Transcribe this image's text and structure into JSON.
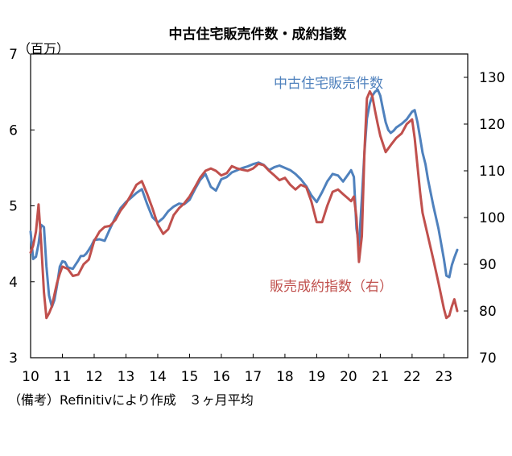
{
  "chart_data": {
    "type": "line",
    "title": "中古住宅販売件数・成約指数",
    "unit_left": "（百万）",
    "note": "（備考）Refinitivにより作成　３ヶ月平均",
    "x_ticks": [
      "10",
      "11",
      "12",
      "13",
      "14",
      "15",
      "16",
      "17",
      "18",
      "19",
      "20",
      "21",
      "22",
      "23"
    ],
    "x_range": [
      2010,
      2023.75
    ],
    "y_left": {
      "range": [
        3,
        7
      ],
      "ticks": [
        "3",
        "4",
        "5",
        "6",
        "7"
      ]
    },
    "y_right": {
      "range": [
        70,
        135
      ],
      "ticks": [
        "70",
        "80",
        "90",
        "100",
        "110",
        "120",
        "130"
      ]
    },
    "grid": false,
    "series": [
      {
        "name": "中古住宅販売件数",
        "axis": "left",
        "color": "#4f81bd",
        "x": [
          2010.0,
          2010.08,
          2010.17,
          2010.25,
          2010.33,
          2010.42,
          2010.5,
          2010.58,
          2010.67,
          2010.75,
          2010.83,
          2010.92,
          2011.0,
          2011.08,
          2011.17,
          2011.25,
          2011.33,
          2011.42,
          2011.5,
          2011.58,
          2011.67,
          2011.75,
          2011.83,
          2011.92,
          2012.0,
          2012.17,
          2012.33,
          2012.5,
          2012.67,
          2012.83,
          2013.0,
          2013.17,
          2013.33,
          2013.5,
          2013.67,
          2013.83,
          2014.0,
          2014.17,
          2014.33,
          2014.5,
          2014.67,
          2014.83,
          2015.0,
          2015.17,
          2015.33,
          2015.5,
          2015.67,
          2015.83,
          2016.0,
          2016.17,
          2016.33,
          2016.5,
          2016.67,
          2016.83,
          2017.0,
          2017.17,
          2017.33,
          2017.5,
          2017.67,
          2017.83,
          2018.0,
          2018.17,
          2018.33,
          2018.5,
          2018.67,
          2018.83,
          2019.0,
          2019.17,
          2019.33,
          2019.5,
          2019.67,
          2019.83,
          2020.0,
          2020.08,
          2020.17,
          2020.25,
          2020.33,
          2020.42,
          2020.5,
          2020.58,
          2020.67,
          2020.75,
          2020.83,
          2020.92,
          2021.0,
          2021.08,
          2021.17,
          2021.25,
          2021.33,
          2021.42,
          2021.5,
          2021.67,
          2021.83,
          2022.0,
          2022.08,
          2022.17,
          2022.25,
          2022.33,
          2022.42,
          2022.5,
          2022.67,
          2022.83,
          2023.0,
          2023.08,
          2023.17,
          2023.25,
          2023.33,
          2023.42
        ],
        "values": [
          4.66,
          4.3,
          4.33,
          4.5,
          4.75,
          4.72,
          4.2,
          3.82,
          3.67,
          3.76,
          3.95,
          4.2,
          4.27,
          4.26,
          4.19,
          4.18,
          4.17,
          4.23,
          4.28,
          4.34,
          4.34,
          4.37,
          4.42,
          4.48,
          4.55,
          4.56,
          4.54,
          4.7,
          4.85,
          4.97,
          5.05,
          5.11,
          5.17,
          5.22,
          5.02,
          4.85,
          4.78,
          4.84,
          4.93,
          4.99,
          5.03,
          5.02,
          5.08,
          5.22,
          5.34,
          5.42,
          5.25,
          5.2,
          5.35,
          5.38,
          5.44,
          5.47,
          5.5,
          5.52,
          5.55,
          5.57,
          5.54,
          5.47,
          5.51,
          5.53,
          5.5,
          5.47,
          5.42,
          5.35,
          5.26,
          5.14,
          5.05,
          5.18,
          5.32,
          5.42,
          5.4,
          5.32,
          5.42,
          5.47,
          5.38,
          4.7,
          4.48,
          5.1,
          5.7,
          6.15,
          6.35,
          6.45,
          6.5,
          6.53,
          6.45,
          6.28,
          6.1,
          6.0,
          5.96,
          5.99,
          6.03,
          6.08,
          6.14,
          6.24,
          6.26,
          6.1,
          5.9,
          5.7,
          5.55,
          5.35,
          5.0,
          4.7,
          4.3,
          4.08,
          4.06,
          4.22,
          4.32,
          4.42
        ]
      },
      {
        "name": "販売成約指数（右）",
        "axis": "right",
        "color": "#c0504d",
        "x": [
          2010.0,
          2010.08,
          2010.17,
          2010.25,
          2010.33,
          2010.42,
          2010.5,
          2010.58,
          2010.67,
          2010.75,
          2010.83,
          2010.92,
          2011.0,
          2011.17,
          2011.33,
          2011.5,
          2011.67,
          2011.83,
          2012.0,
          2012.17,
          2012.33,
          2012.5,
          2012.67,
          2012.83,
          2013.0,
          2013.17,
          2013.33,
          2013.5,
          2013.67,
          2013.83,
          2014.0,
          2014.17,
          2014.33,
          2014.5,
          2014.67,
          2014.83,
          2015.0,
          2015.17,
          2015.33,
          2015.5,
          2015.67,
          2015.83,
          2016.0,
          2016.17,
          2016.33,
          2016.5,
          2016.67,
          2016.83,
          2017.0,
          2017.17,
          2017.33,
          2017.5,
          2017.67,
          2017.83,
          2018.0,
          2018.17,
          2018.33,
          2018.5,
          2018.67,
          2018.83,
          2019.0,
          2019.17,
          2019.33,
          2019.5,
          2019.67,
          2019.83,
          2020.0,
          2020.08,
          2020.17,
          2020.25,
          2020.33,
          2020.42,
          2020.5,
          2020.58,
          2020.67,
          2020.75,
          2020.83,
          2020.92,
          2021.0,
          2021.17,
          2021.33,
          2021.5,
          2021.67,
          2021.83,
          2022.0,
          2022.08,
          2022.17,
          2022.25,
          2022.33,
          2022.5,
          2022.67,
          2022.83,
          2023.0,
          2023.08,
          2023.17,
          2023.25,
          2023.33,
          2023.42
        ],
        "values": [
          92.5,
          94.0,
          97.0,
          102.8,
          95.0,
          84.0,
          78.5,
          79.5,
          81.0,
          83.5,
          86.0,
          88.0,
          89.5,
          89.0,
          87.5,
          87.8,
          90.0,
          91.0,
          95.0,
          97.0,
          98.0,
          98.2,
          99.5,
          101.5,
          103.0,
          105.0,
          107.0,
          107.8,
          105.0,
          102.0,
          98.5,
          96.5,
          97.5,
          100.5,
          102.0,
          103.0,
          104.5,
          106.5,
          108.5,
          110.0,
          110.5,
          110.0,
          109.0,
          109.5,
          111.0,
          110.5,
          110.2,
          110.0,
          110.5,
          111.5,
          111.2,
          110.0,
          109.0,
          108.0,
          108.5,
          107.0,
          106.0,
          107.0,
          106.5,
          103.5,
          99.0,
          99.0,
          102.5,
          105.5,
          106.0,
          105.0,
          104.0,
          103.5,
          104.5,
          100.0,
          90.5,
          96.0,
          114.0,
          125.5,
          127.0,
          126.0,
          123.0,
          120.0,
          117.5,
          114.0,
          115.5,
          117.0,
          118.0,
          120.0,
          121.0,
          117.0,
          111.0,
          105.5,
          101.0,
          96.0,
          91.0,
          86.0,
          80.5,
          78.5,
          79.0,
          81.0,
          82.5,
          80.0
        ]
      }
    ]
  }
}
